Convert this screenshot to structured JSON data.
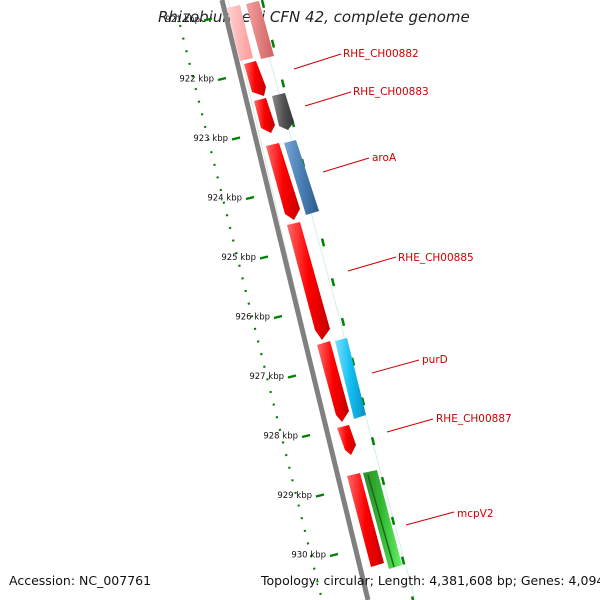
{
  "title": "Rhizobium etli CFN 42, complete genome",
  "footer": {
    "accession": "Accession: NC_007761",
    "topology": "Topology: circular; Length: 4,381,608 bp; Genes: 4,094"
  },
  "scale": {
    "unit": "kbp",
    "ticks": [
      {
        "value": 921,
        "label": "921 kbp"
      },
      {
        "value": 922,
        "label": "922 kbp"
      },
      {
        "value": 923,
        "label": "923 kbp"
      },
      {
        "value": 924,
        "label": "924 kbp"
      },
      {
        "value": 925,
        "label": "925 kbp"
      },
      {
        "value": 926,
        "label": "926 kbp"
      },
      {
        "value": 927,
        "label": "927 kbp"
      },
      {
        "value": 928,
        "label": "928 kbp"
      },
      {
        "value": 929,
        "label": "929 kbp"
      },
      {
        "value": 930,
        "label": "930 kbp"
      }
    ]
  },
  "gene_labels": [
    {
      "name": "RHE_CH00882"
    },
    {
      "name": "RHE_CH00883"
    },
    {
      "name": "aroA"
    },
    {
      "name": "RHE_CH00885"
    },
    {
      "name": "purD"
    },
    {
      "name": "RHE_CH00887"
    },
    {
      "name": "mcpV2"
    }
  ],
  "colors": {
    "cds": "#ff0000",
    "backbone": "#808080",
    "scale": "#008000",
    "label": "#cc0000",
    "grey_gene": "#555555",
    "aroA": "#4a7fb5",
    "purD": "#12bff0",
    "mcpV2": "#33bb33"
  }
}
